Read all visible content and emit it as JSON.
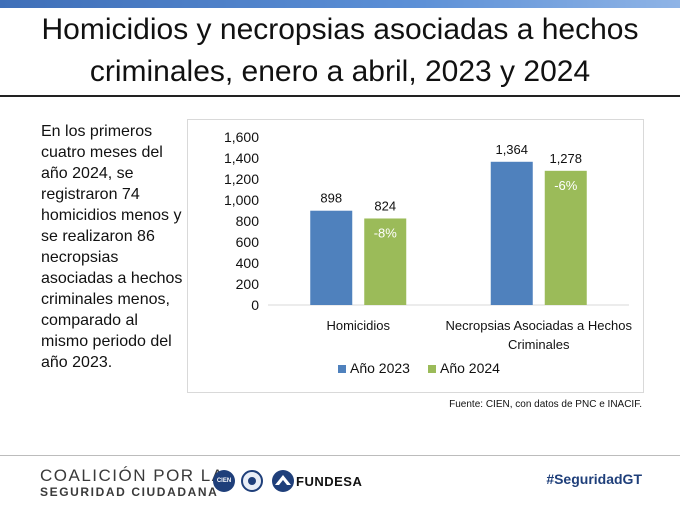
{
  "title": "Homicidios y necropsias asociadas a hechos criminales, enero a abril, 2023 y 2024",
  "summary": "En los primeros cuatro meses del año 2024, se registraron 74 homicidios menos y se realizaron 86 necropsias asociadas a hechos criminales menos, comparado al mismo periodo del año 2023.",
  "source": "Fuente: CIEN, con datos de PNC e INACIF.",
  "footer": {
    "org_line1": "COALICIÓN POR LA",
    "org_line2": "SEGURIDAD CIUDADANA",
    "logo_cien": "CIEN",
    "logo_fundesa": "FUNDESA",
    "hashtag": "#SeguridadGT"
  },
  "colors": {
    "series_2023": "#4f81bd",
    "series_2024": "#9bbb59",
    "accent": "#1f3f7a"
  },
  "chart_data": {
    "type": "bar",
    "categories": [
      "Homicidios",
      "Necropsias Asociadas a Hechos Criminales"
    ],
    "series": [
      {
        "name": "Año 2023",
        "values": [
          898,
          1364
        ],
        "labels": [
          "898",
          "1,364"
        ]
      },
      {
        "name": "Año 2024",
        "values": [
          824,
          1278
        ],
        "labels": [
          "824",
          "1,278"
        ]
      }
    ],
    "annotations": [
      "-8%",
      "-6%"
    ],
    "ylim": [
      0,
      1600
    ],
    "yticks": [
      "0",
      "200",
      "400",
      "600",
      "800",
      "1,000",
      "1,200",
      "1,400",
      "1,600"
    ],
    "legend": "bottom",
    "title": "",
    "xlabel": "",
    "ylabel": ""
  }
}
